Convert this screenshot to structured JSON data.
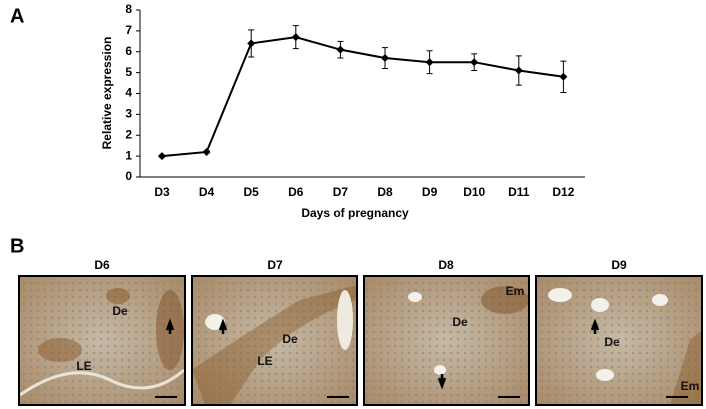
{
  "chart_data": {
    "type": "line",
    "panel_label": "A",
    "y_label": "Relative expression",
    "x_label": "Days of pregnancy",
    "categories": [
      "D3",
      "D4",
      "D5",
      "D6",
      "D7",
      "D8",
      "D9",
      "D10",
      "D11",
      "D12"
    ],
    "series": [
      {
        "color": "#000000",
        "values": [
          1.0,
          1.2,
          6.4,
          6.7,
          6.1,
          5.7,
          5.5,
          5.5,
          5.1,
          4.8
        ],
        "errors": [
          0.05,
          0.05,
          0.65,
          0.55,
          0.4,
          0.5,
          0.55,
          0.4,
          0.7,
          0.75
        ]
      }
    ],
    "ylim": [
      0,
      8
    ],
    "yticks": [
      0,
      1,
      2,
      3,
      4,
      5,
      6,
      7,
      8
    ]
  },
  "panel_b": {
    "label": "B",
    "images": [
      {
        "title": "D6",
        "labels": [
          "De",
          "LE"
        ]
      },
      {
        "title": "D7",
        "labels": [
          "De",
          "LE"
        ]
      },
      {
        "title": "D8",
        "labels": [
          "Em",
          "De"
        ]
      },
      {
        "title": "D9",
        "labels": [
          "De",
          "Em"
        ]
      }
    ]
  }
}
